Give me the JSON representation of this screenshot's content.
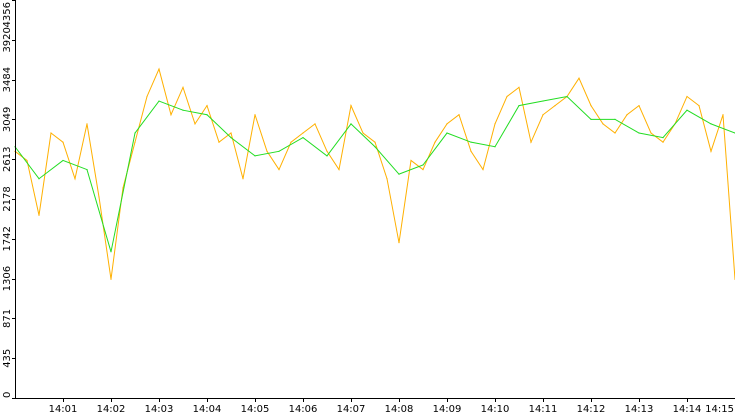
{
  "chart_data": {
    "type": "line",
    "title": "",
    "xlabel": "",
    "ylabel": "",
    "x_unit": "minute",
    "x_start": "14:00:00",
    "x_range_minutes": [
      0,
      15.0
    ],
    "y_range": [
      0,
      4356
    ],
    "x_tick_labels": [
      "14:01",
      "14:02",
      "14:03",
      "14:04",
      "14:05",
      "14:06",
      "14:07",
      "14:08",
      "14:09",
      "14:10",
      "14:11",
      "14:12",
      "14:13",
      "14:14",
      "14:15"
    ],
    "x_tick_minutes": [
      1,
      2,
      3,
      4,
      5,
      6,
      7,
      8,
      9,
      10,
      11,
      12,
      13,
      14,
      15
    ],
    "y_ticks": [
      0,
      435,
      871,
      1306,
      1742,
      2178,
      2613,
      3049,
      3484,
      3920,
      4356
    ],
    "y_tick_labels": [
      "0",
      "435",
      "871",
      "1306",
      "1742",
      "2178",
      "2613",
      "3049",
      "3484",
      "3920",
      "4356"
    ],
    "grid": false,
    "legend": "none",
    "series": [
      {
        "color": "#FFB000",
        "x": [
          0.0,
          0.25,
          0.5,
          0.75,
          1.0,
          1.25,
          1.5,
          1.75,
          2.0,
          2.25,
          2.5,
          2.75,
          3.0,
          3.25,
          3.5,
          3.75,
          4.0,
          4.25,
          4.5,
          4.75,
          5.0,
          5.25,
          5.5,
          5.75,
          6.0,
          6.25,
          6.5,
          6.75,
          7.0,
          7.25,
          7.5,
          7.75,
          8.0,
          8.25,
          8.5,
          8.75,
          9.0,
          9.25,
          9.5,
          9.75,
          10.0,
          10.25,
          10.5,
          10.75,
          11.0,
          11.25,
          11.5,
          11.75,
          12.0,
          12.25,
          12.5,
          12.75,
          13.0,
          13.25,
          13.5,
          13.75,
          14.0,
          14.25,
          14.5,
          14.75,
          15.0
        ],
        "y": [
          2700,
          2600,
          2000,
          2900,
          2800,
          2400,
          3000,
          2200,
          1300,
          2300,
          2800,
          3300,
          3600,
          3100,
          3400,
          3000,
          3200,
          2800,
          2900,
          2400,
          3100,
          2700,
          2500,
          2800,
          2900,
          3000,
          2700,
          2500,
          3200,
          2900,
          2800,
          2400,
          1700,
          2600,
          2500,
          2800,
          3000,
          3100,
          2700,
          2500,
          3000,
          3300,
          3400,
          2800,
          3100,
          3200,
          3300,
          3500,
          3200,
          3000,
          2900,
          3100,
          3200,
          2900,
          2800,
          3000,
          3300,
          3200,
          2700,
          3100,
          1300
        ]
      },
      {
        "color": "#22DD22",
        "x": [
          0.0,
          0.5,
          1.0,
          1.5,
          2.0,
          2.5,
          3.0,
          3.5,
          4.0,
          4.5,
          5.0,
          5.5,
          6.0,
          6.5,
          7.0,
          7.5,
          8.0,
          8.5,
          9.0,
          9.5,
          10.0,
          10.5,
          11.0,
          11.5,
          12.0,
          12.5,
          13.0,
          13.5,
          14.0,
          14.5,
          15.0
        ],
        "y": [
          2750,
          2400,
          2600,
          2500,
          1600,
          2900,
          3250,
          3150,
          3100,
          2850,
          2650,
          2700,
          2850,
          2650,
          3000,
          2750,
          2450,
          2550,
          2900,
          2800,
          2750,
          3200,
          3250,
          3300,
          3050,
          3050,
          2900,
          2850,
          3150,
          3000,
          2900
        ]
      }
    ]
  }
}
